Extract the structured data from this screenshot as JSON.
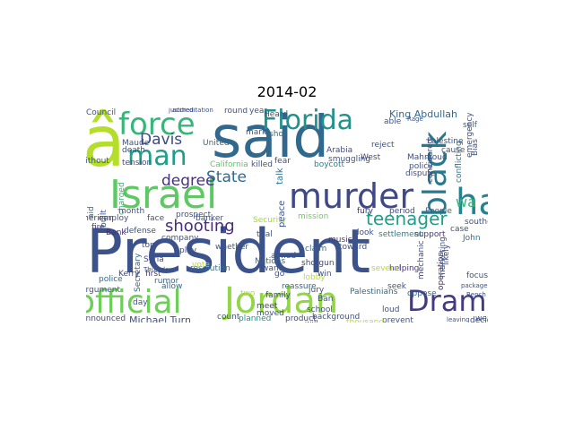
{
  "title": "2014-02",
  "words": [
    {
      "text": "President",
      "color": "#3b528b"
    },
    {
      "text": "said",
      "color": "#31688e"
    },
    {
      "text": "â",
      "color": "#b5de2b"
    },
    {
      "text": "Israel",
      "color": "#5ec962"
    },
    {
      "text": "murder",
      "color": "#3e4989"
    },
    {
      "text": "Jordan",
      "color": "#90d743"
    },
    {
      "text": "official",
      "color": "#6ece58"
    },
    {
      "text": "force",
      "color": "#35b779"
    },
    {
      "text": "Florida",
      "color": "#21918c"
    },
    {
      "text": "man",
      "color": "#1f9e89"
    },
    {
      "text": "ha",
      "color": "#26828e"
    },
    {
      "text": "black",
      "color": "#2a788e"
    },
    {
      "text": "Drama",
      "color": "#443983"
    },
    {
      "text": "teenager",
      "color": "#1f9e89"
    },
    {
      "text": "Davis",
      "color": "#3e4989"
    },
    {
      "text": "degree",
      "color": "#46327e"
    },
    {
      "text": "State",
      "color": "#31688e"
    },
    {
      "text": "shooting",
      "color": "#472d7b"
    },
    {
      "text": "wa",
      "color": "#35b779"
    },
    {
      "text": "King Abdullah",
      "color": "#31688e"
    },
    {
      "text": "Michael Turn",
      "color": "#3b528b"
    },
    {
      "text": "announced",
      "color": "#3e4989"
    },
    {
      "text": "resolution",
      "color": "#2c728e"
    },
    {
      "text": "Palestinians",
      "color": "#31688e"
    },
    {
      "text": "settlement",
      "color": "#26828e"
    },
    {
      "text": "peace",
      "color": "#3b528b"
    },
    {
      "text": "talk",
      "color": "#2c728e"
    },
    {
      "text": "Secretary",
      "color": "#31688e"
    },
    {
      "text": "Syria",
      "color": "#3e4989"
    },
    {
      "text": "American",
      "color": "#472d7b"
    },
    {
      "text": "Nations",
      "color": "#31688e"
    },
    {
      "text": "trial",
      "color": "#3b528b"
    },
    {
      "text": "music",
      "color": "#46327e"
    },
    {
      "text": "claim",
      "color": "#31688e"
    },
    {
      "text": "West",
      "color": "#3e4989"
    },
    {
      "text": "case",
      "color": "#3b528b"
    },
    {
      "text": "John",
      "color": "#2c728e"
    },
    {
      "text": "support",
      "color": "#46327e"
    },
    {
      "text": "defense",
      "color": "#3b528b"
    },
    {
      "text": "Kerry",
      "color": "#3e4989"
    },
    {
      "text": "first",
      "color": "#46327e"
    },
    {
      "text": "allow",
      "color": "#31688e"
    },
    {
      "text": "count",
      "color": "#3b528b"
    },
    {
      "text": "Council",
      "color": "#3b528b"
    },
    {
      "text": "United",
      "color": "#31688e"
    },
    {
      "text": "tension",
      "color": "#3b528b"
    },
    {
      "text": "Bank",
      "color": "#472d7b"
    },
    {
      "text": "aid",
      "color": "#2c728e"
    },
    {
      "text": "shot",
      "color": "#2c728e"
    },
    {
      "text": "mission",
      "color": "#6ece58"
    },
    {
      "text": "Security",
      "color": "#a0da39"
    },
    {
      "text": "round",
      "color": "#3b528b"
    },
    {
      "text": "self",
      "color": "#31688e"
    },
    {
      "text": "period",
      "color": "#3e4989"
    },
    {
      "text": "fury",
      "color": "#472d7b"
    },
    {
      "text": "loud",
      "color": "#3b528b"
    },
    {
      "text": "planned",
      "color": "#21918c"
    },
    {
      "text": "two",
      "color": "#b5de2b"
    },
    {
      "text": "meet",
      "color": "#3e4989"
    },
    {
      "text": "fire",
      "color": "#443983"
    },
    {
      "text": "play",
      "color": "#3e4989"
    },
    {
      "text": "rumor",
      "color": "#31688e"
    },
    {
      "text": "killed",
      "color": "#3b528b"
    },
    {
      "text": "California",
      "color": "#5ec962"
    },
    {
      "text": "Arabia",
      "color": "#3e4989"
    },
    {
      "text": "reject",
      "color": "#3b528b"
    },
    {
      "text": "mechanic",
      "color": "#3e4989"
    },
    {
      "text": "operation",
      "color": "#472d7b"
    },
    {
      "text": "conflicting",
      "color": "#2c728e"
    },
    {
      "text": "policy",
      "color": "#3b528b"
    },
    {
      "text": "boycott",
      "color": "#26828e"
    },
    {
      "text": "shotgun",
      "color": "#3e4989"
    },
    {
      "text": "focus",
      "color": "#3b528b"
    },
    {
      "text": "helping",
      "color": "#46327e"
    },
    {
      "text": "decide",
      "color": "#3e4989"
    },
    {
      "text": "prevent",
      "color": "#3b528b"
    },
    {
      "text": "argument",
      "color": "#3b528b"
    },
    {
      "text": "police",
      "color": "#31688e"
    },
    {
      "text": "day",
      "color": "#3b528b"
    },
    {
      "text": "product",
      "color": "#3e4989"
    },
    {
      "text": "background",
      "color": "#3b528b"
    },
    {
      "text": "reassure",
      "color": "#31688e"
    },
    {
      "text": "family",
      "color": "#3e4989"
    },
    {
      "text": "oppose",
      "color": "#31688e"
    },
    {
      "text": "seek",
      "color": "#3b528b"
    },
    {
      "text": "likely",
      "color": "#3e4989"
    },
    {
      "text": "Mahmoud",
      "color": "#3e4989"
    },
    {
      "text": "banker",
      "color": "#3b528b"
    },
    {
      "text": "People",
      "color": "#31688e"
    },
    {
      "text": "southern",
      "color": "#3b528b"
    },
    {
      "text": "toward",
      "color": "#3b528b"
    },
    {
      "text": "company",
      "color": "#3b528b"
    },
    {
      "text": "whether",
      "color": "#3b528b"
    },
    {
      "text": "Palestine",
      "color": "#3b528b"
    },
    {
      "text": "considered",
      "color": "#3e4989"
    },
    {
      "text": "able",
      "color": "#3b528b"
    },
    {
      "text": "death",
      "color": "#3b528b"
    },
    {
      "text": "Maude",
      "color": "#3b528b"
    },
    {
      "text": "justified",
      "color": "#3e4989"
    },
    {
      "text": "accreditation",
      "color": "#3b528b"
    },
    {
      "text": "terrorist",
      "color": "#3b528b"
    },
    {
      "text": "occupation",
      "color": "#3b528b"
    },
    {
      "text": "charged",
      "color": "#35b779"
    },
    {
      "text": "Thursday",
      "color": "#3b528b"
    },
    {
      "text": "marketing",
      "color": "#3b528b"
    },
    {
      "text": "emergency",
      "color": "#3b528b"
    },
    {
      "text": "Bias",
      "color": "#3b528b"
    },
    {
      "text": "top",
      "color": "#3e4989"
    },
    {
      "text": "month",
      "color": "#3b528b"
    },
    {
      "text": "employ",
      "color": "#3b528b"
    },
    {
      "text": "face",
      "color": "#3b528b"
    },
    {
      "text": "prospect",
      "color": "#3b528b"
    },
    {
      "text": "Ban",
      "color": "#3b528b"
    },
    {
      "text": "jury",
      "color": "#3b528b"
    },
    {
      "text": "Rage",
      "color": "#3b528b"
    },
    {
      "text": "Bench",
      "color": "#3b528b"
    },
    {
      "text": "package",
      "color": "#3b528b"
    },
    {
      "text": "smuggling",
      "color": "#3b528b"
    },
    {
      "text": "dispute",
      "color": "#3b528b"
    },
    {
      "text": "look",
      "color": "#3b528b"
    },
    {
      "text": "aimed",
      "color": "#3b528b"
    },
    {
      "text": "Heard",
      "color": "#3b528b"
    },
    {
      "text": "want",
      "color": "#3b528b"
    },
    {
      "text": "fear",
      "color": "#3b528b"
    },
    {
      "text": "school",
      "color": "#3b528b"
    },
    {
      "text": "mark",
      "color": "#3b528b"
    },
    {
      "text": "year",
      "color": "#3b528b"
    },
    {
      "text": "built",
      "color": "#3b528b"
    },
    {
      "text": "without",
      "color": "#3b528b"
    },
    {
      "text": "will",
      "color": "#3b528b"
    },
    {
      "text": "moved",
      "color": "#3b528b"
    },
    {
      "text": "weapon",
      "color": "#3b528b"
    },
    {
      "text": "leaving",
      "color": "#3b528b"
    },
    {
      "text": "cause",
      "color": "#3b528b"
    },
    {
      "text": "straightforward",
      "color": "#3b528b"
    },
    {
      "text": "thousand",
      "color": "#b5de2b"
    },
    {
      "text": "several",
      "color": "#b5de2b"
    },
    {
      "text": "vote",
      "color": "#b5de2b"
    },
    {
      "text": "lobby",
      "color": "#b5de2b"
    },
    {
      "text": "go",
      "color": "#3b528b"
    },
    {
      "text": "win",
      "color": "#3b528b"
    }
  ]
}
